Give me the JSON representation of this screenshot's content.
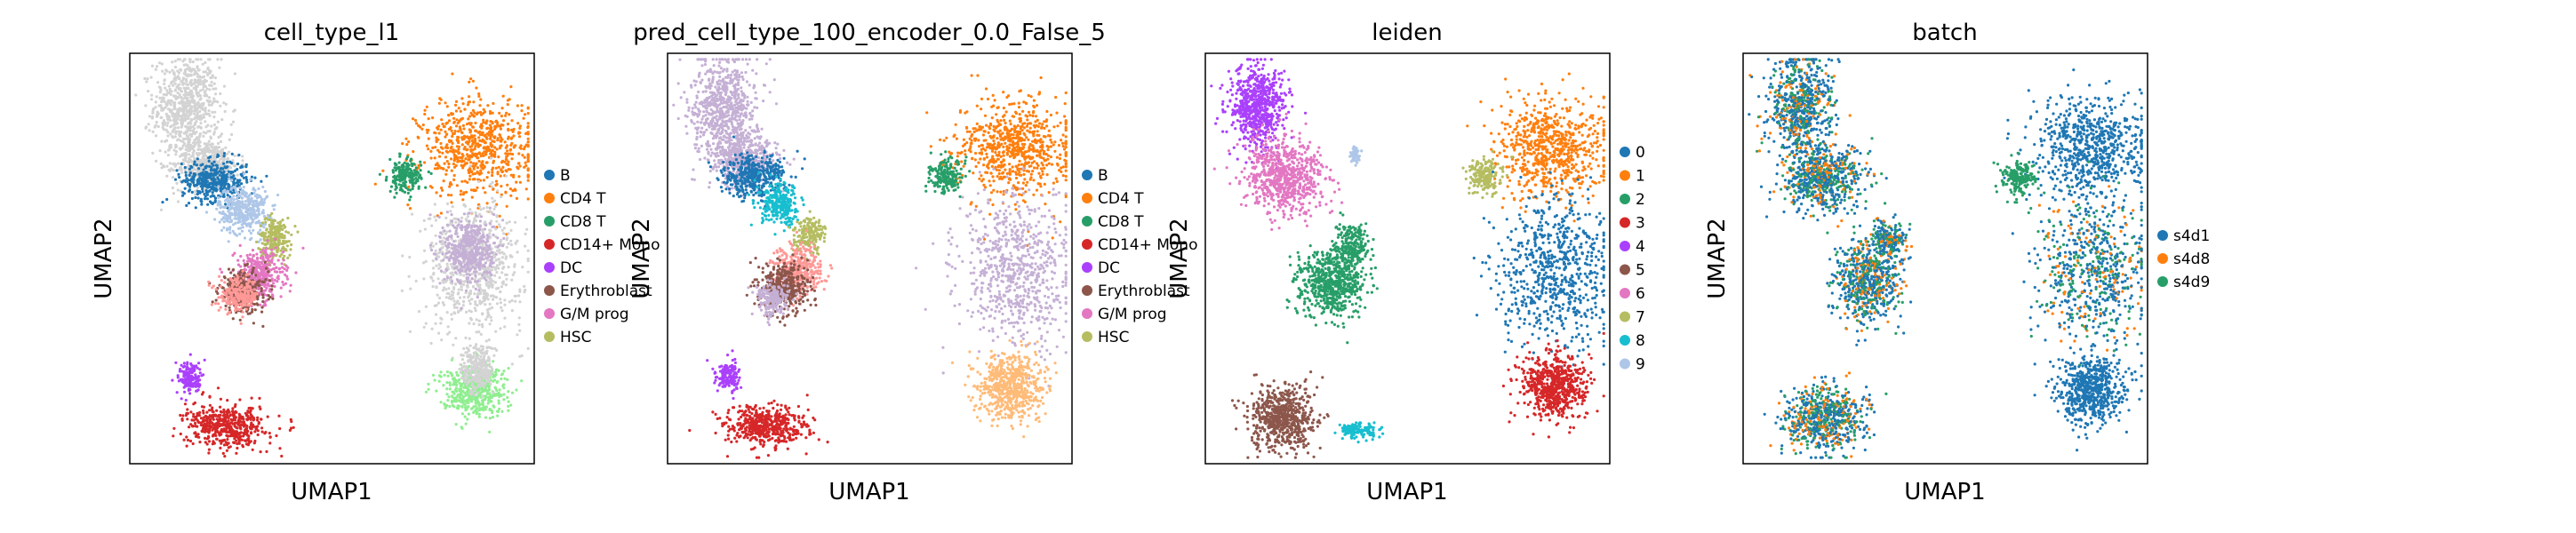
{
  "chart_data": [
    {
      "type": "scatter",
      "title": "cell_type_l1",
      "xlabel": "UMAP1",
      "ylabel": "UMAP2",
      "legend_position": "right",
      "legend": [
        {
          "label": "B",
          "color": "#1f77b4"
        },
        {
          "label": "CD4 T",
          "color": "#ff7f0e"
        },
        {
          "label": "CD8 T",
          "color": "#279e68"
        },
        {
          "label": "CD14+ Mono",
          "color": "#d62728"
        },
        {
          "label": "DC",
          "color": "#aa40fc"
        },
        {
          "label": "Erythroblast",
          "color": "#8c564b"
        },
        {
          "label": "G/M prog",
          "color": "#e377c2"
        },
        {
          "label": "HSC",
          "color": "#b5bd61"
        }
      ],
      "clusters": [
        {
          "color": "#d3d3d3",
          "cx": 0.14,
          "cy": 0.87,
          "sx": 0.04,
          "sy": 0.06
        },
        {
          "color": "#d3d3d3",
          "cx": 0.19,
          "cy": 0.73,
          "sx": 0.04,
          "sy": 0.03
        },
        {
          "color": "#1f77b4",
          "cx": 0.21,
          "cy": 0.69,
          "sx": 0.04,
          "sy": 0.025
        },
        {
          "color": "#aec7e8",
          "cx": 0.28,
          "cy": 0.62,
          "sx": 0.03,
          "sy": 0.03
        },
        {
          "color": "#b5bd61",
          "cx": 0.36,
          "cy": 0.55,
          "sx": 0.02,
          "sy": 0.025
        },
        {
          "color": "#e377c2",
          "cx": 0.32,
          "cy": 0.46,
          "sx": 0.03,
          "sy": 0.03
        },
        {
          "color": "#8c564b",
          "cx": 0.28,
          "cy": 0.42,
          "sx": 0.03,
          "sy": 0.025
        },
        {
          "color": "#ff9896",
          "cx": 0.27,
          "cy": 0.41,
          "sx": 0.025,
          "sy": 0.02
        },
        {
          "color": "#ff7f0e",
          "cx": 0.86,
          "cy": 0.77,
          "sx": 0.07,
          "sy": 0.06
        },
        {
          "color": "#279e68",
          "cx": 0.68,
          "cy": 0.7,
          "sx": 0.02,
          "sy": 0.02
        },
        {
          "color": "#d3d3d3",
          "cx": 0.85,
          "cy": 0.48,
          "sx": 0.06,
          "sy": 0.08
        },
        {
          "color": "#c5b0d5",
          "cx": 0.84,
          "cy": 0.52,
          "sx": 0.03,
          "sy": 0.04
        },
        {
          "color": "#90ee90",
          "cx": 0.85,
          "cy": 0.18,
          "sx": 0.04,
          "sy": 0.03
        },
        {
          "color": "#d3d3d3",
          "cx": 0.86,
          "cy": 0.23,
          "sx": 0.02,
          "sy": 0.03
        },
        {
          "color": "#aa40fc",
          "cx": 0.15,
          "cy": 0.21,
          "sx": 0.015,
          "sy": 0.02
        },
        {
          "color": "#d62728",
          "cx": 0.24,
          "cy": 0.09,
          "sx": 0.05,
          "sy": 0.025
        }
      ]
    },
    {
      "type": "scatter",
      "title": "pred_cell_type_100_encoder_0.0_False_5",
      "xlabel": "UMAP1",
      "ylabel": "UMAP2",
      "legend_position": "right",
      "legend": [
        {
          "label": "B",
          "color": "#1f77b4"
        },
        {
          "label": "CD4 T",
          "color": "#ff7f0e"
        },
        {
          "label": "CD8 T",
          "color": "#279e68"
        },
        {
          "label": "CD14+ Mono",
          "color": "#d62728"
        },
        {
          "label": "DC",
          "color": "#aa40fc"
        },
        {
          "label": "Erythroblast",
          "color": "#8c564b"
        },
        {
          "label": "G/M prog",
          "color": "#e377c2"
        },
        {
          "label": "HSC",
          "color": "#b5bd61"
        }
      ],
      "clusters": [
        {
          "color": "#c5b0d5",
          "cx": 0.14,
          "cy": 0.87,
          "sx": 0.04,
          "sy": 0.06
        },
        {
          "color": "#c5b0d5",
          "cx": 0.19,
          "cy": 0.74,
          "sx": 0.04,
          "sy": 0.03
        },
        {
          "color": "#1f77b4",
          "cx": 0.21,
          "cy": 0.7,
          "sx": 0.04,
          "sy": 0.025
        },
        {
          "color": "#17becf",
          "cx": 0.28,
          "cy": 0.63,
          "sx": 0.025,
          "sy": 0.025
        },
        {
          "color": "#b5bd61",
          "cx": 0.35,
          "cy": 0.56,
          "sx": 0.02,
          "sy": 0.02
        },
        {
          "color": "#ff9896",
          "cx": 0.32,
          "cy": 0.47,
          "sx": 0.03,
          "sy": 0.03
        },
        {
          "color": "#8c564b",
          "cx": 0.29,
          "cy": 0.43,
          "sx": 0.03,
          "sy": 0.03
        },
        {
          "color": "#c5b0d5",
          "cx": 0.26,
          "cy": 0.4,
          "sx": 0.02,
          "sy": 0.02
        },
        {
          "color": "#ff7f0e",
          "cx": 0.86,
          "cy": 0.77,
          "sx": 0.07,
          "sy": 0.06
        },
        {
          "color": "#279e68",
          "cx": 0.69,
          "cy": 0.7,
          "sx": 0.02,
          "sy": 0.02
        },
        {
          "color": "#c5b0d5",
          "cx": 0.86,
          "cy": 0.47,
          "sx": 0.07,
          "sy": 0.09
        },
        {
          "color": "#ffbb78",
          "cx": 0.85,
          "cy": 0.19,
          "sx": 0.04,
          "sy": 0.04
        },
        {
          "color": "#aa40fc",
          "cx": 0.15,
          "cy": 0.21,
          "sx": 0.015,
          "sy": 0.02
        },
        {
          "color": "#d62728",
          "cx": 0.24,
          "cy": 0.09,
          "sx": 0.05,
          "sy": 0.025
        }
      ]
    },
    {
      "type": "scatter",
      "title": "leiden",
      "xlabel": "UMAP1",
      "ylabel": "UMAP2",
      "legend_position": "right",
      "legend": [
        {
          "label": "0",
          "color": "#1f77b4"
        },
        {
          "label": "1",
          "color": "#ff7f0e"
        },
        {
          "label": "2",
          "color": "#279e68"
        },
        {
          "label": "3",
          "color": "#d62728"
        },
        {
          "label": "4",
          "color": "#aa40fc"
        },
        {
          "label": "5",
          "color": "#8c564b"
        },
        {
          "label": "6",
          "color": "#e377c2"
        },
        {
          "label": "7",
          "color": "#b5bd61"
        },
        {
          "label": "8",
          "color": "#17becf"
        },
        {
          "label": "9",
          "color": "#aec7e8"
        }
      ],
      "clusters": [
        {
          "color": "#aa40fc",
          "cx": 0.13,
          "cy": 0.87,
          "sx": 0.035,
          "sy": 0.05
        },
        {
          "color": "#e377c2",
          "cx": 0.2,
          "cy": 0.7,
          "sx": 0.05,
          "sy": 0.045
        },
        {
          "color": "#279e68",
          "cx": 0.36,
          "cy": 0.53,
          "sx": 0.02,
          "sy": 0.025
        },
        {
          "color": "#279e68",
          "cx": 0.31,
          "cy": 0.44,
          "sx": 0.04,
          "sy": 0.04
        },
        {
          "color": "#ff7f0e",
          "cx": 0.86,
          "cy": 0.77,
          "sx": 0.07,
          "sy": 0.06
        },
        {
          "color": "#b5bd61",
          "cx": 0.69,
          "cy": 0.7,
          "sx": 0.02,
          "sy": 0.02
        },
        {
          "color": "#1f77b4",
          "cx": 0.86,
          "cy": 0.47,
          "sx": 0.07,
          "sy": 0.09
        },
        {
          "color": "#d62728",
          "cx": 0.86,
          "cy": 0.19,
          "sx": 0.04,
          "sy": 0.04
        },
        {
          "color": "#8c564b",
          "cx": 0.19,
          "cy": 0.11,
          "sx": 0.04,
          "sy": 0.04
        },
        {
          "color": "#17becf",
          "cx": 0.38,
          "cy": 0.08,
          "sx": 0.025,
          "sy": 0.01
        },
        {
          "color": "#aec7e8",
          "cx": 0.37,
          "cy": 0.75,
          "sx": 0.006,
          "sy": 0.01
        }
      ]
    },
    {
      "type": "scatter",
      "title": "batch",
      "xlabel": "UMAP1",
      "ylabel": "UMAP2",
      "legend_position": "right",
      "legend": [
        {
          "label": "s4d1",
          "color": "#1f77b4"
        },
        {
          "label": "s4d8",
          "color": "#ff7f0e"
        },
        {
          "label": "s4d9",
          "color": "#279e68"
        }
      ],
      "clusters": [
        {
          "color": "mix",
          "cx": 0.14,
          "cy": 0.87,
          "sx": 0.04,
          "sy": 0.06
        },
        {
          "color": "mix",
          "cx": 0.2,
          "cy": 0.7,
          "sx": 0.05,
          "sy": 0.04
        },
        {
          "color": "mix",
          "cx": 0.31,
          "cy": 0.45,
          "sx": 0.04,
          "sy": 0.05
        },
        {
          "color": "mix",
          "cx": 0.36,
          "cy": 0.55,
          "sx": 0.02,
          "sy": 0.02
        },
        {
          "color": "#1f77b4",
          "cx": 0.86,
          "cy": 0.77,
          "sx": 0.07,
          "sy": 0.06
        },
        {
          "color": "#279e68",
          "cx": 0.68,
          "cy": 0.7,
          "sx": 0.02,
          "sy": 0.02
        },
        {
          "color": "mix",
          "cx": 0.86,
          "cy": 0.47,
          "sx": 0.07,
          "sy": 0.09
        },
        {
          "color": "#1f77b4",
          "cx": 0.86,
          "cy": 0.18,
          "sx": 0.04,
          "sy": 0.04
        },
        {
          "color": "mix",
          "cx": 0.2,
          "cy": 0.11,
          "sx": 0.05,
          "sy": 0.04
        }
      ]
    }
  ]
}
